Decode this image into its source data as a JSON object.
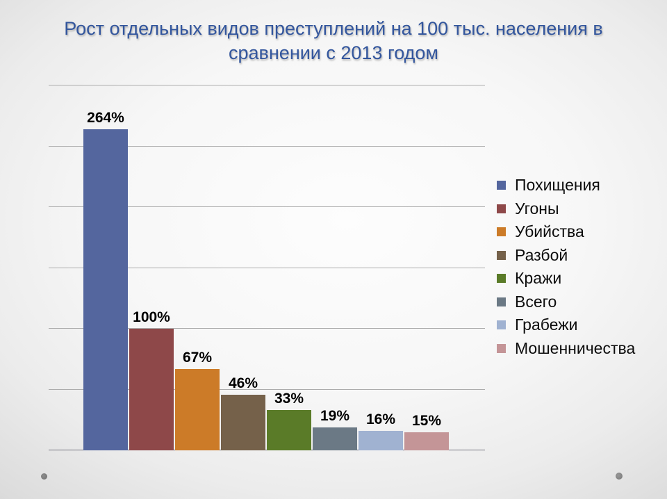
{
  "slide": {
    "title_color": "#33569d",
    "background_edge_color": "#c7c7c7",
    "background_center_color": "#fdfdfd"
  },
  "chart_data": {
    "type": "bar",
    "title": "Рост отдельных видов преступлений на 100 тыс. населения в сравнении с 2013 годом",
    "categories": [
      "Похищения",
      "Угоны",
      "Убийства",
      "Разбой",
      "Кражи",
      "Всего",
      "Грабежи",
      "Мошенничества"
    ],
    "values": [
      264,
      100,
      67,
      46,
      33,
      19,
      16,
      15
    ],
    "data_labels": [
      "264%",
      "100%",
      "67%",
      "46%",
      "33%",
      "19%",
      "16%",
      "15%"
    ],
    "value_suffix": "%",
    "colors": [
      "#54669e",
      "#8e4849",
      "#cc7b28",
      "#75614a",
      "#5a7b28",
      "#6b7985",
      "#a0b2d1",
      "#c49597"
    ],
    "xlabel": "",
    "ylabel": "",
    "ylim": [
      0,
      300
    ],
    "gridline_step": 50,
    "grid": true,
    "gridline_color": "#ababab",
    "axis_line_color": "#70707c",
    "label_color": "#000000",
    "legend_position": "right"
  },
  "decor": {
    "left_dot": "bottom-left gray dot",
    "right_dot": "bottom-right gray dot"
  }
}
